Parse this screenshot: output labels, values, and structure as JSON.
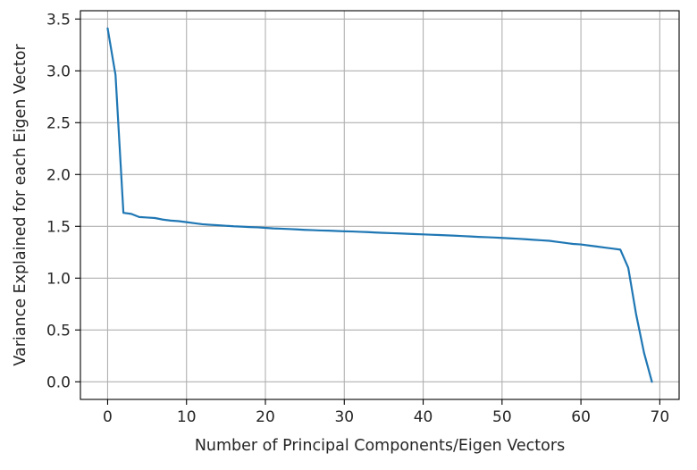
{
  "chart_data": {
    "type": "line",
    "title": "",
    "xlabel": "Number of Principal Components/Eigen Vectors",
    "ylabel": "Variance Explained for each Eigen Vector",
    "xlim": [
      -3.45,
      72.45
    ],
    "ylim": [
      -0.17,
      3.58
    ],
    "xticks": [
      0,
      10,
      20,
      30,
      40,
      50,
      60,
      70
    ],
    "yticks": [
      0.0,
      0.5,
      1.0,
      1.5,
      2.0,
      2.5,
      3.0,
      3.5
    ],
    "xtick_labels": [
      "0",
      "10",
      "20",
      "30",
      "40",
      "50",
      "60",
      "70"
    ],
    "ytick_labels": [
      "0.0",
      "0.5",
      "1.0",
      "1.5",
      "2.0",
      "2.5",
      "3.0",
      "3.5"
    ],
    "grid": true,
    "line_color": "#1f77b4",
    "series": [
      {
        "x": [
          0,
          1,
          2,
          3,
          4,
          5,
          6,
          7,
          8,
          9,
          10,
          11,
          12,
          13,
          14,
          15,
          16,
          17,
          18,
          19,
          20,
          21,
          22,
          23,
          24,
          25,
          26,
          27,
          28,
          29,
          30,
          31,
          32,
          33,
          34,
          35,
          36,
          37,
          38,
          39,
          40,
          41,
          42,
          43,
          44,
          45,
          46,
          47,
          48,
          49,
          50,
          51,
          52,
          53,
          54,
          55,
          56,
          57,
          58,
          59,
          60,
          61,
          62,
          63,
          64,
          65,
          66,
          67,
          68,
          69
        ],
        "values": [
          3.41,
          2.96,
          1.63,
          1.62,
          1.59,
          1.585,
          1.58,
          1.565,
          1.555,
          1.55,
          1.54,
          1.53,
          1.52,
          1.515,
          1.51,
          1.505,
          1.5,
          1.497,
          1.493,
          1.49,
          1.485,
          1.48,
          1.477,
          1.474,
          1.47,
          1.466,
          1.463,
          1.46,
          1.458,
          1.455,
          1.452,
          1.45,
          1.447,
          1.444,
          1.44,
          1.437,
          1.434,
          1.431,
          1.428,
          1.425,
          1.422,
          1.419,
          1.416,
          1.413,
          1.41,
          1.406,
          1.402,
          1.398,
          1.395,
          1.392,
          1.388,
          1.384,
          1.38,
          1.375,
          1.37,
          1.365,
          1.36,
          1.35,
          1.34,
          1.33,
          1.325,
          1.315,
          1.305,
          1.295,
          1.285,
          1.275,
          1.1,
          0.65,
          0.28,
          0.0
        ]
      }
    ]
  }
}
